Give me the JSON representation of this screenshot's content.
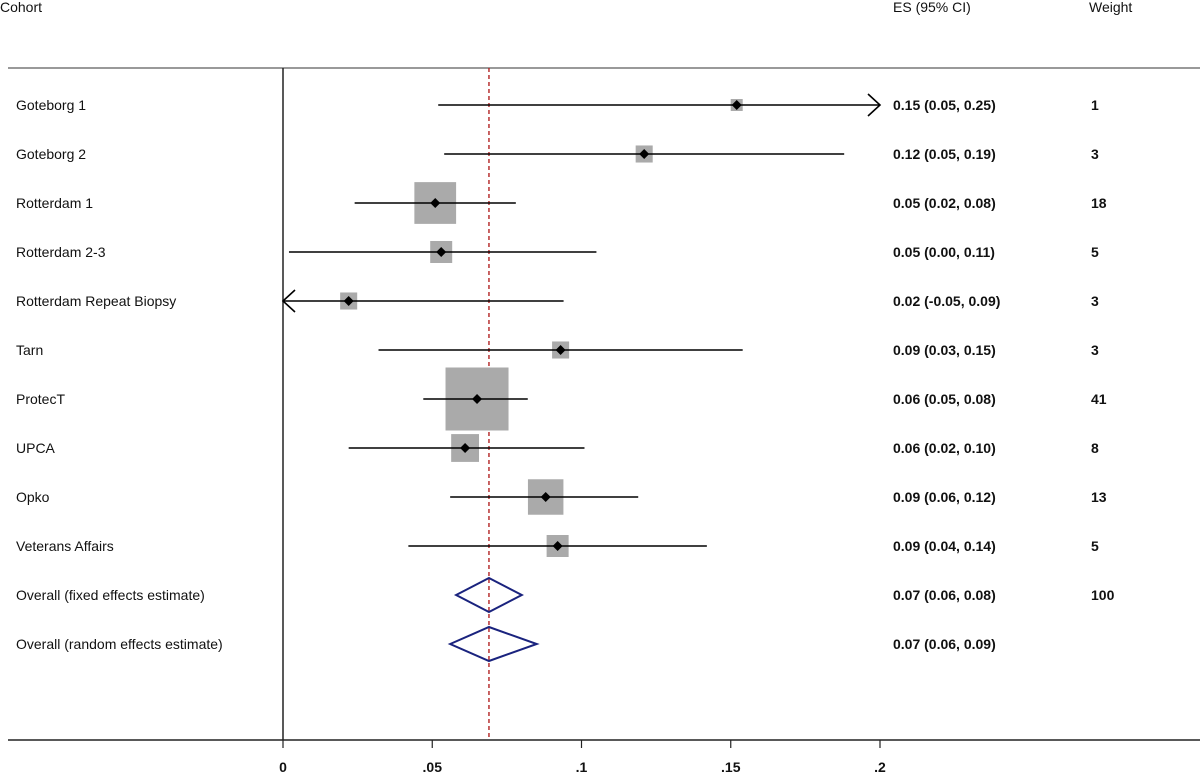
{
  "chart_data": {
    "type": "forest",
    "headers": {
      "cohort": "Cohort",
      "es": "ES (95% CI)",
      "weight": "Weight"
    },
    "xlim": [
      0,
      0.2
    ],
    "xticks": [
      {
        "value": 0,
        "label": "0"
      },
      {
        "value": 0.05,
        "label": ".05"
      },
      {
        "value": 0.1,
        "label": ".1"
      },
      {
        "value": 0.15,
        "label": ".15"
      },
      {
        "value": 0.2,
        "label": ".2"
      }
    ],
    "reference_line": 0.069,
    "studies": [
      {
        "name": "Goteborg 1",
        "es": 0.152,
        "lo": 0.052,
        "hi": 0.25,
        "es_label": "0.15 (0.05, 0.25)",
        "weight": "1",
        "weight_value": 1
      },
      {
        "name": "Goteborg 2",
        "es": 0.121,
        "lo": 0.054,
        "hi": 0.188,
        "es_label": "0.12 (0.05, 0.19)",
        "weight": "3",
        "weight_value": 3
      },
      {
        "name": "Rotterdam 1",
        "es": 0.051,
        "lo": 0.024,
        "hi": 0.078,
        "es_label": "0.05 (0.02, 0.08)",
        "weight": "18",
        "weight_value": 18
      },
      {
        "name": "Rotterdam 2-3",
        "es": 0.053,
        "lo": 0.002,
        "hi": 0.105,
        "es_label": "0.05 (0.00, 0.11)",
        "weight": "5",
        "weight_value": 5
      },
      {
        "name": "Rotterdam Repeat Biopsy",
        "es": 0.022,
        "lo": -0.05,
        "hi": 0.094,
        "es_label": "0.02 (-0.05, 0.09)",
        "weight": "3",
        "weight_value": 3
      },
      {
        "name": "Tarn",
        "es": 0.093,
        "lo": 0.032,
        "hi": 0.154,
        "es_label": "0.09 (0.03, 0.15)",
        "weight": "3",
        "weight_value": 3
      },
      {
        "name": "ProtecT",
        "es": 0.065,
        "lo": 0.047,
        "hi": 0.082,
        "es_label": "0.06 (0.05, 0.08)",
        "weight": "41",
        "weight_value": 41
      },
      {
        "name": "UPCA",
        "es": 0.061,
        "lo": 0.022,
        "hi": 0.101,
        "es_label": "0.06 (0.02, 0.10)",
        "weight": "8",
        "weight_value": 8
      },
      {
        "name": "Opko",
        "es": 0.088,
        "lo": 0.056,
        "hi": 0.119,
        "es_label": "0.09 (0.06, 0.12)",
        "weight": "13",
        "weight_value": 13
      },
      {
        "name": "Veterans Affairs",
        "es": 0.092,
        "lo": 0.042,
        "hi": 0.142,
        "es_label": "0.09 (0.04, 0.14)",
        "weight": "5",
        "weight_value": 5
      }
    ],
    "overall": [
      {
        "name": "Overall (fixed effects estimate)",
        "es": 0.069,
        "lo": 0.058,
        "hi": 0.08,
        "es_label": "0.07 (0.06, 0.08)",
        "weight": "100"
      },
      {
        "name": "Overall (random effects estimate)",
        "es": 0.069,
        "lo": 0.056,
        "hi": 0.085,
        "es_label": "0.07 (0.06, 0.09)",
        "weight": ""
      }
    ],
    "colors": {
      "box": "#aaaaaa",
      "point": "#000000",
      "ci": "#000000",
      "diamond": "#1a237e",
      "reference_line": "#b22222"
    }
  }
}
